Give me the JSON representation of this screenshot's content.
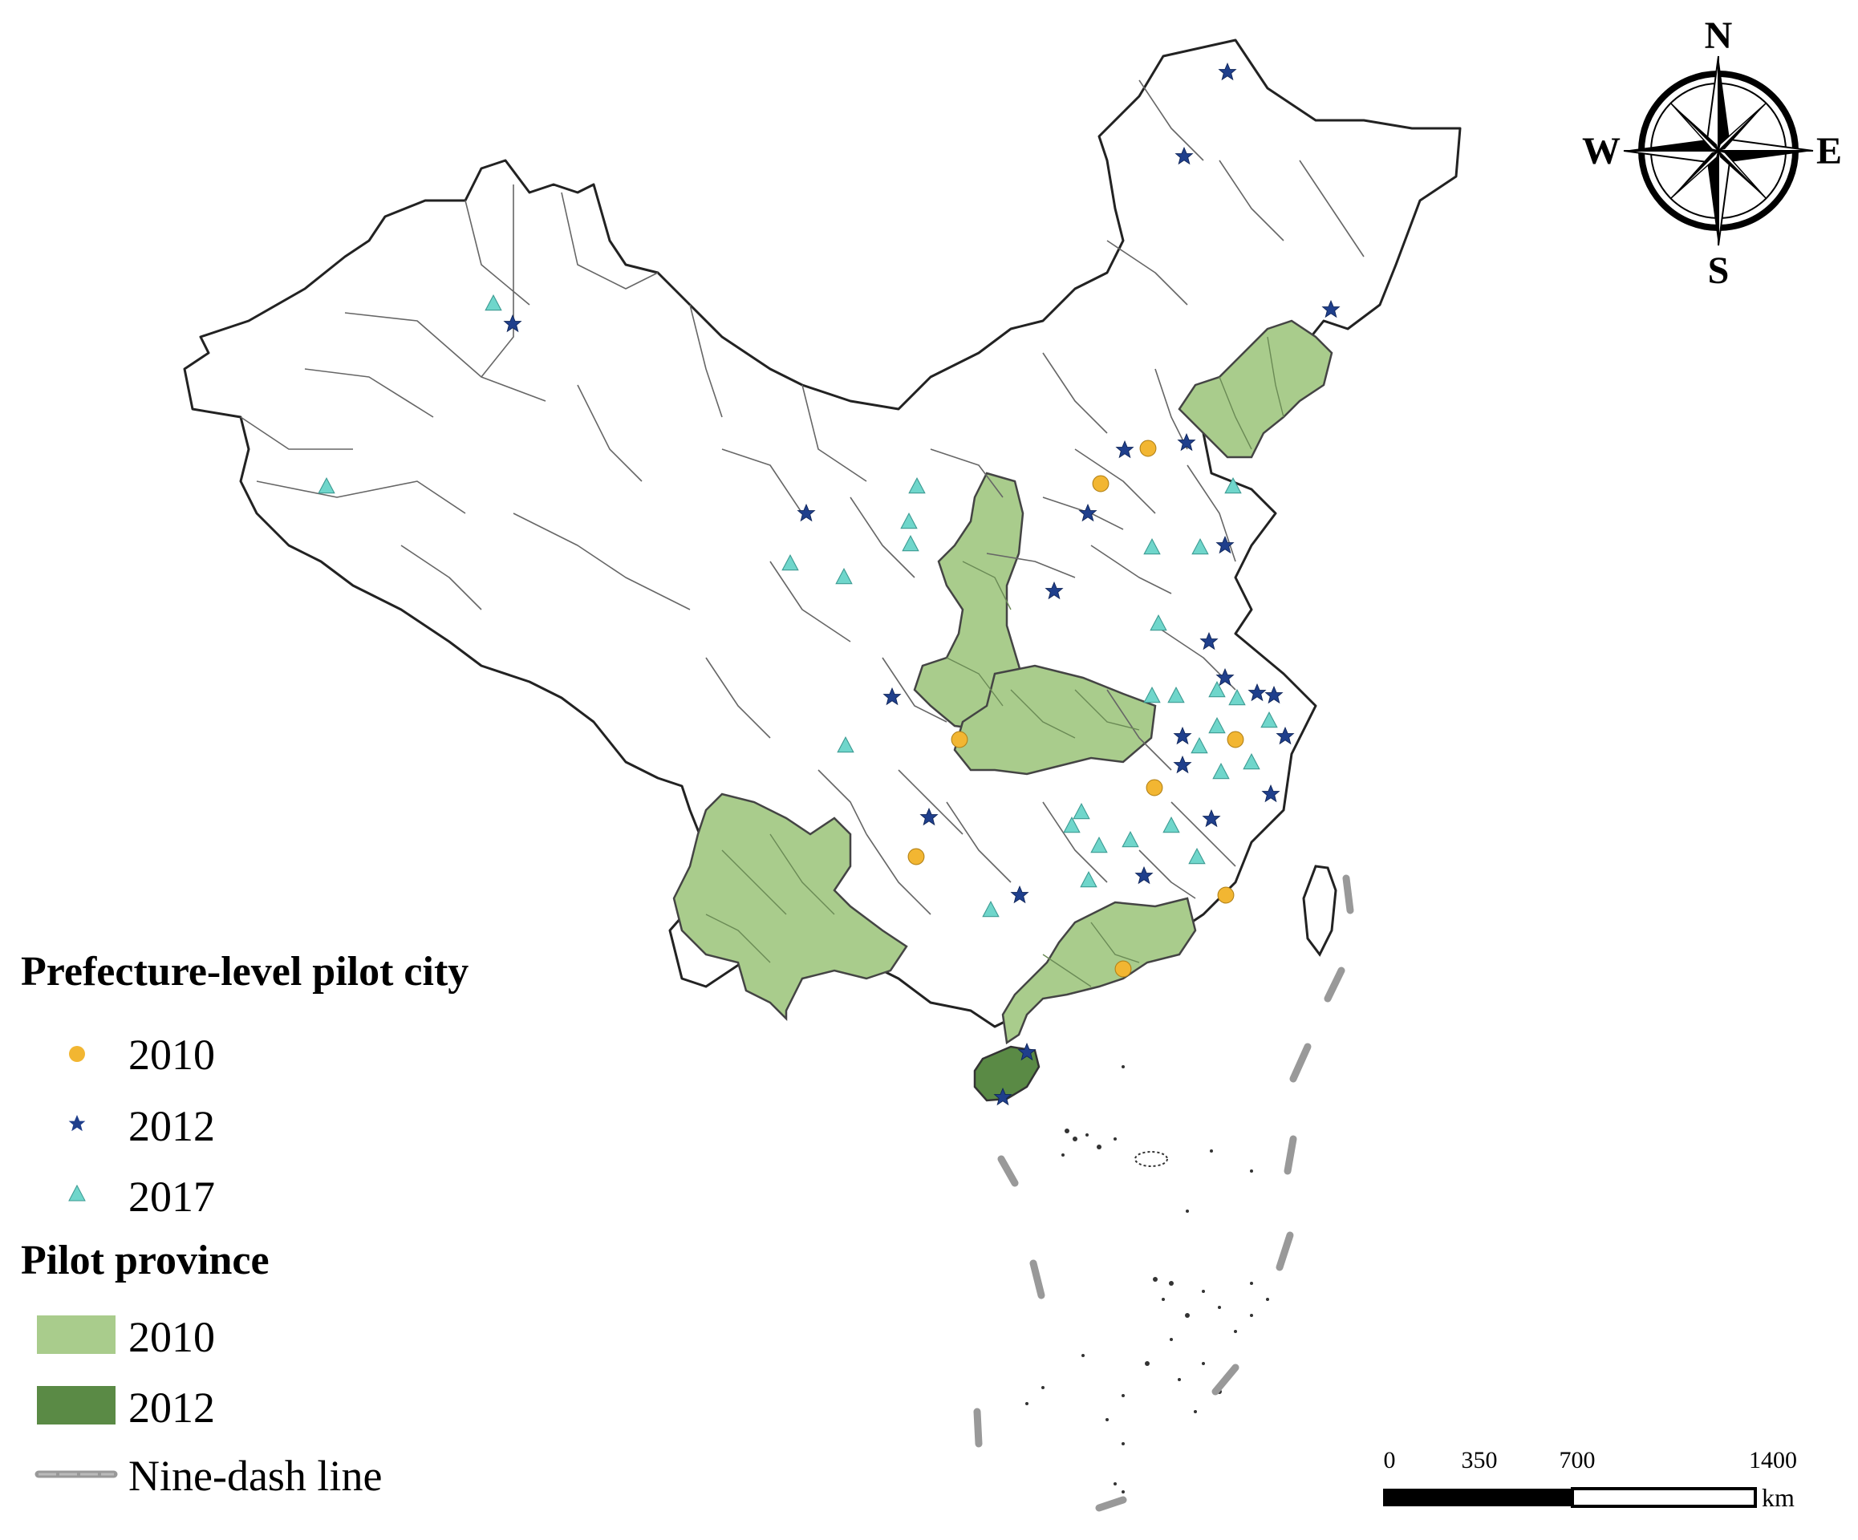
{
  "colors": {
    "city_2010": "#F2B632",
    "city_2012": "#1F3F8C",
    "city_2017": "#6FD6CB",
    "province_2010": "#A9CC8C",
    "province_2012": "#5A8A45",
    "boundary": "#666666",
    "nine_dash": "#999999"
  },
  "legend": {
    "city_heading": "Prefecture-level pilot city",
    "city_items": [
      {
        "symbol": "circle",
        "label": "2010"
      },
      {
        "symbol": "star",
        "label": "2012"
      },
      {
        "symbol": "triangle",
        "label": "2017"
      }
    ],
    "province_heading": "Pilot province",
    "province_items": [
      {
        "symbol": "swatch-light",
        "label": "2010"
      },
      {
        "symbol": "swatch-dark",
        "label": "2012"
      },
      {
        "symbol": "dash-line",
        "label": "Nine-dash line"
      }
    ]
  },
  "compass": {
    "north": "N",
    "south": "S",
    "east": "E",
    "west": "W"
  },
  "scale_bar": {
    "ticks": [
      "0",
      "350",
      "700",
      "1400"
    ],
    "unit": "km"
  }
}
